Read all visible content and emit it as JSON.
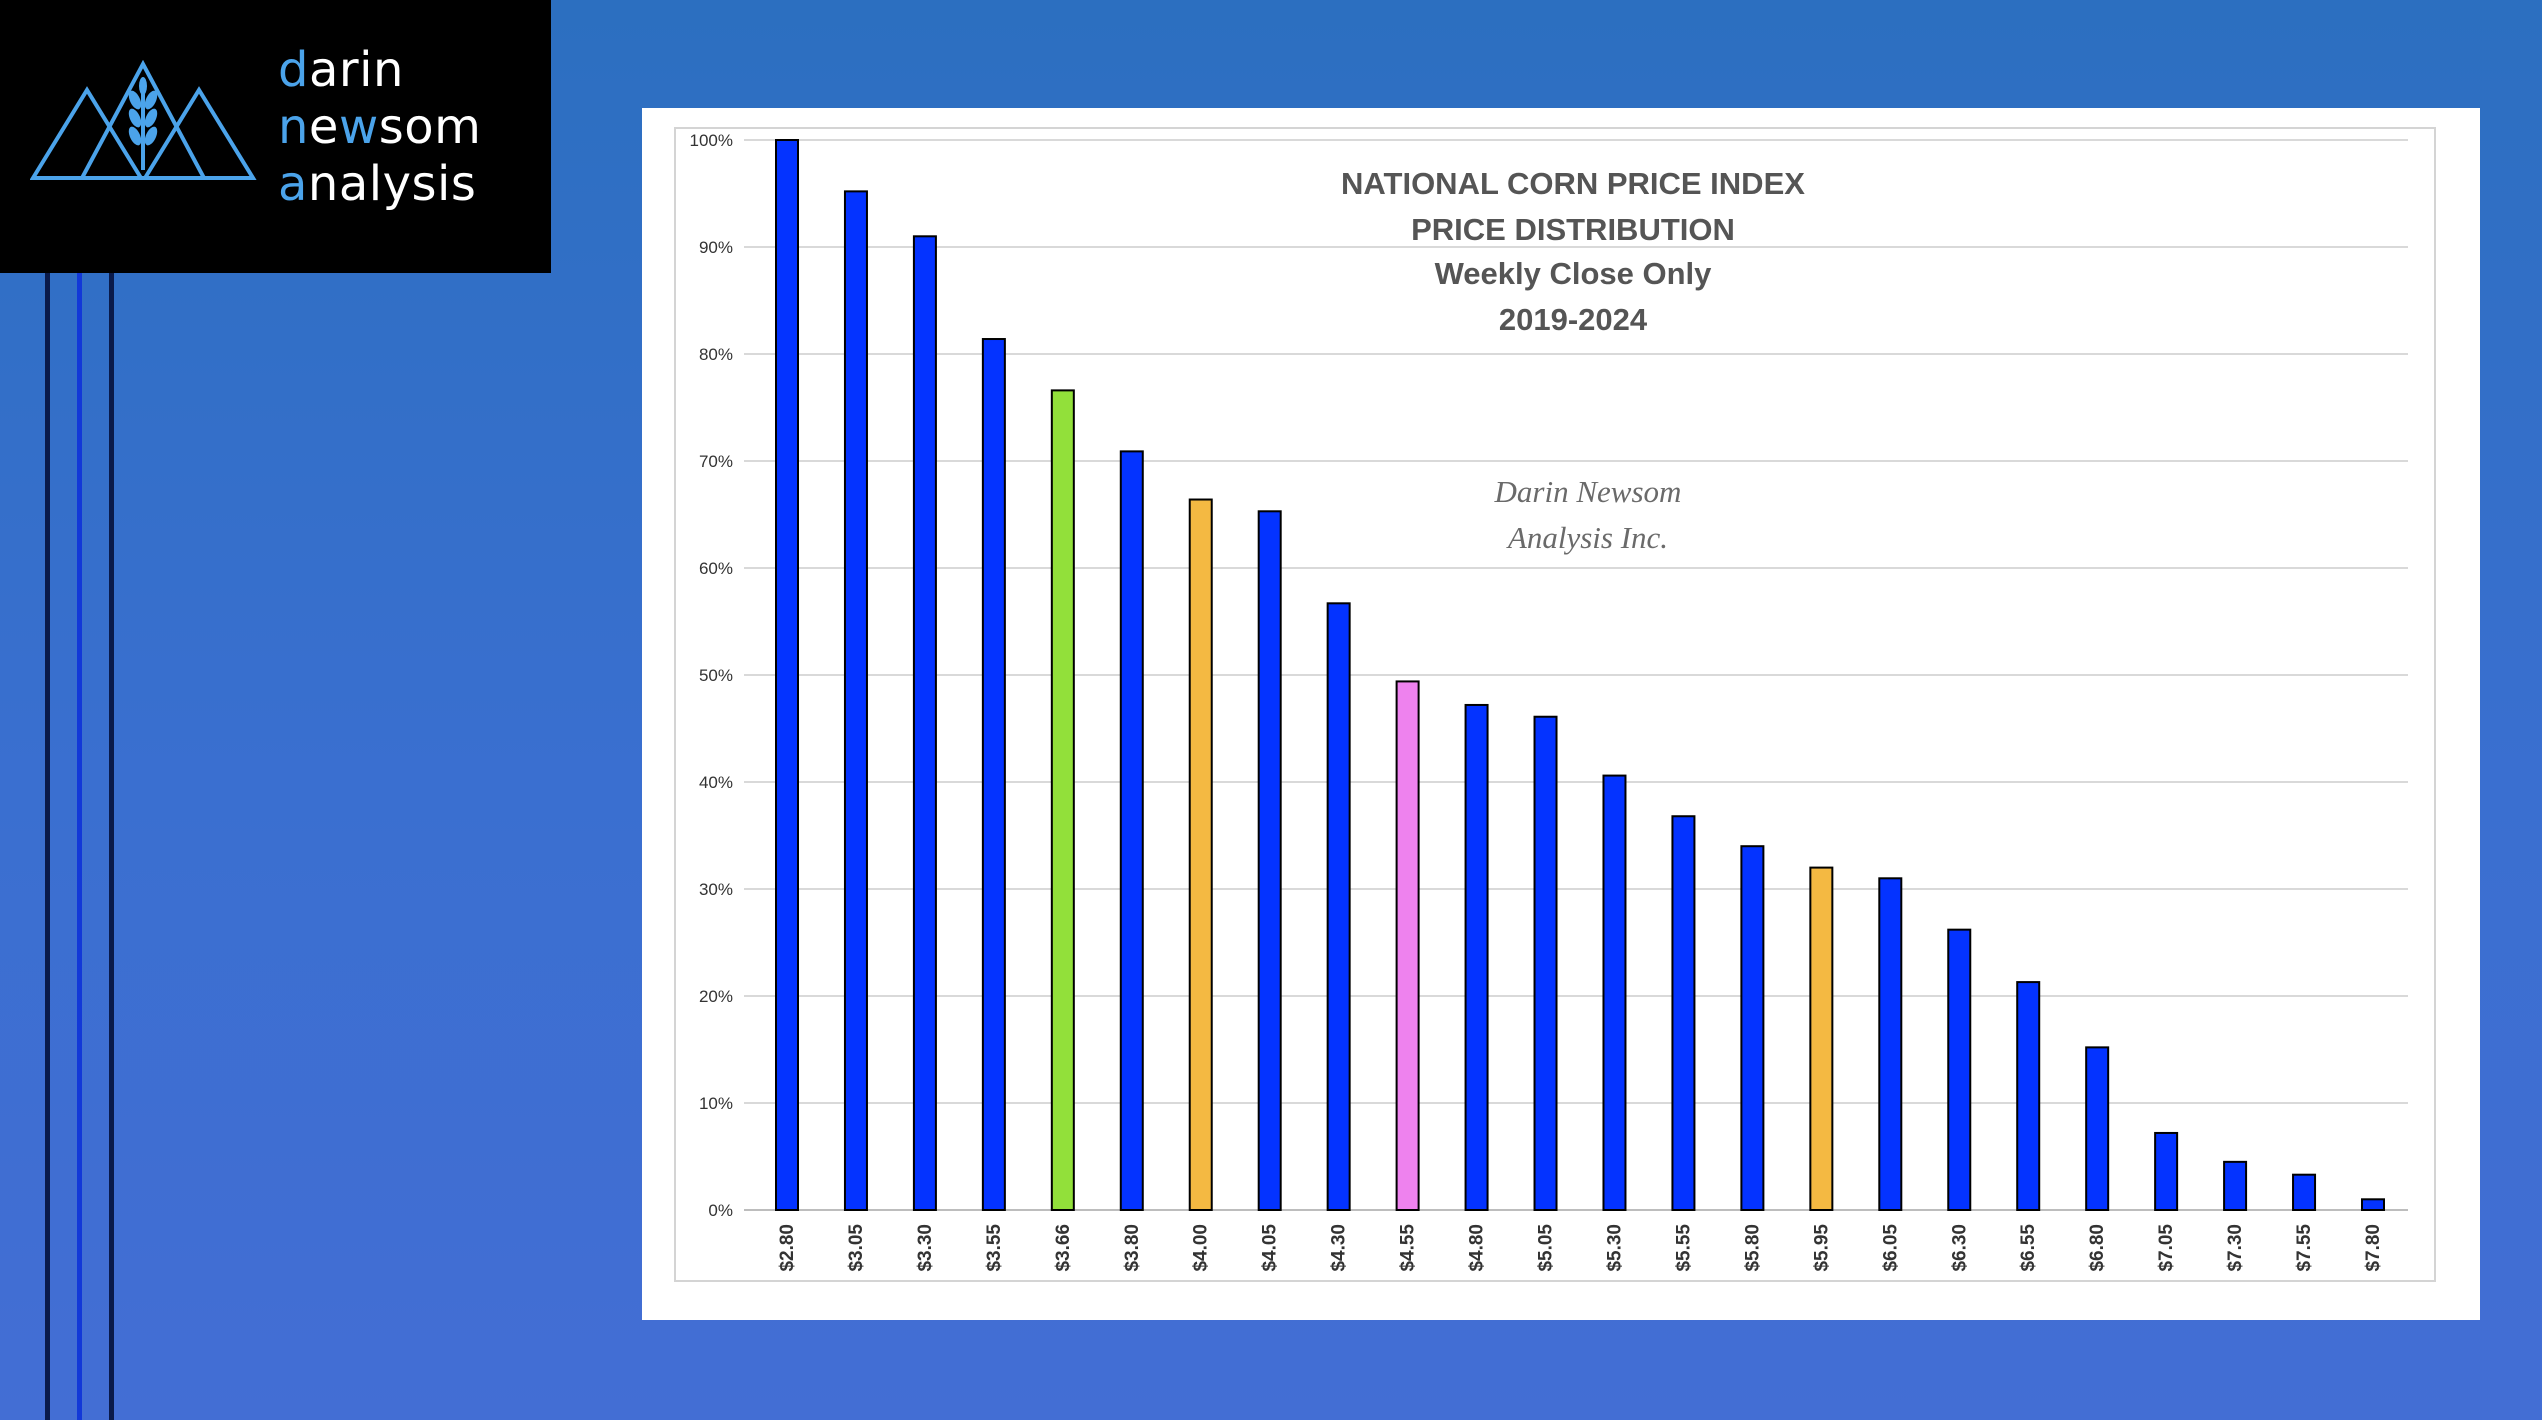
{
  "logo": {
    "line1_accent": "d",
    "line1_rest": "arin",
    "line2_accent": "n",
    "line2_mid": "e",
    "line2_accent2": "w",
    "line2_rest": "som",
    "line3_accent": "a",
    "line3_rest": "nalysis",
    "accent_color": "#4ba3ea",
    "mark_color": "#4ba3ea",
    "mark_icon": "mountains-wheat-icon"
  },
  "chart_data": {
    "type": "bar",
    "title": [
      "NATIONAL CORN PRICE INDEX",
      "PRICE DISTRIBUTION",
      "Weekly Close Only",
      "2019-2024"
    ],
    "watermark": [
      "Darin Newsom",
      "Analysis Inc."
    ],
    "xlabel": "",
    "ylabel": "",
    "ylim": [
      0,
      100
    ],
    "yticks": [
      0,
      10,
      20,
      30,
      40,
      50,
      60,
      70,
      80,
      90,
      100
    ],
    "ytick_labels": [
      "0%",
      "10%",
      "20%",
      "30%",
      "40%",
      "50%",
      "60%",
      "70%",
      "80%",
      "90%",
      "100%"
    ],
    "grid": true,
    "categories": [
      "$2.80",
      "$3.05",
      "$3.30",
      "$3.55",
      "$3.66",
      "$3.80",
      "$4.00",
      "$4.05",
      "$4.30",
      "$4.55",
      "$4.80",
      "$5.05",
      "$5.30",
      "$5.55",
      "$5.80",
      "$5.95",
      "$6.05",
      "$6.30",
      "$6.55",
      "$6.80",
      "$7.05",
      "$7.30",
      "$7.55",
      "$7.80"
    ],
    "values": [
      100,
      95.2,
      91,
      81.4,
      76.6,
      70.9,
      66.4,
      65.3,
      56.7,
      49.4,
      47.2,
      46.1,
      40.6,
      36.8,
      34,
      32,
      31,
      26.2,
      21.3,
      15.2,
      7.2,
      4.5,
      3.3,
      1
    ],
    "colors": [
      "#0433ff",
      "#0433ff",
      "#0433ff",
      "#0433ff",
      "#92e03a",
      "#0433ff",
      "#f4b942",
      "#0433ff",
      "#0433ff",
      "#ee82ee",
      "#0433ff",
      "#0433ff",
      "#0433ff",
      "#0433ff",
      "#0433ff",
      "#f4b942",
      "#0433ff",
      "#0433ff",
      "#0433ff",
      "#0433ff",
      "#0433ff",
      "#0433ff",
      "#0433ff",
      "#0433ff"
    ]
  }
}
